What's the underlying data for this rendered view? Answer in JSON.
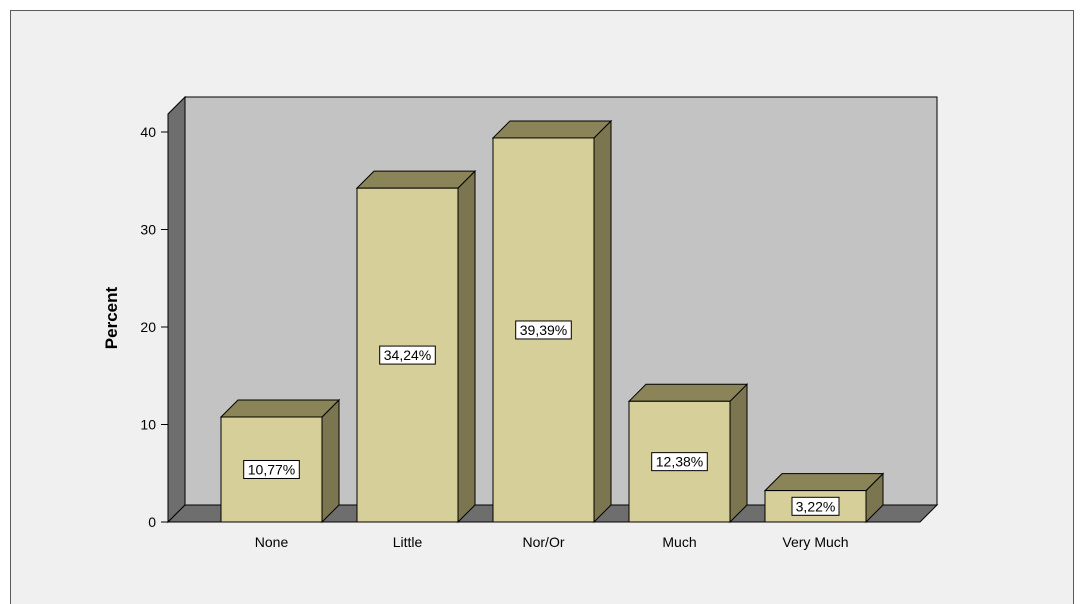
{
  "chart_data": {
    "type": "bar",
    "categories": [
      "None",
      "Little",
      "Nor/Or",
      "Much",
      "Very Much"
    ],
    "values": [
      10.77,
      34.24,
      39.39,
      12.38,
      3.22
    ],
    "value_labels": [
      "10,77%",
      "34,24%",
      "39,39%",
      "12,38%",
      "3,22%"
    ],
    "title": "",
    "xlabel": "",
    "ylabel": "Percent",
    "ylim": [
      0,
      40
    ],
    "yticks": [
      0,
      10,
      20,
      30,
      40
    ],
    "ytick_labels": [
      "0",
      "10",
      "20",
      "30",
      "40"
    ],
    "style": "3d",
    "grid": false,
    "colors": {
      "bar_front": "#d6cf9a",
      "bar_side": "#7b7550",
      "bar_top": "#8a8458",
      "back_wall": "#c3c3c3",
      "side_wall": "#6e6e6e",
      "floor": "#6e6e6e",
      "label_box": "#ffffff"
    }
  }
}
